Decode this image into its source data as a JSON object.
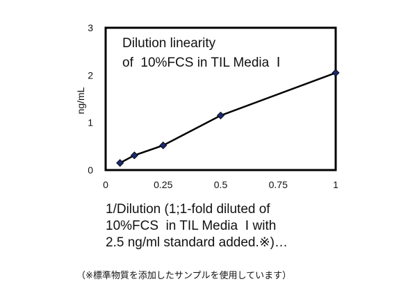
{
  "chart_data": {
    "type": "line",
    "title_lines": [
      "Dilution linearity",
      "of  10%FCS in TIL Media  Ⅰ"
    ],
    "ylabel": "ng/mL",
    "xlim": [
      0,
      1
    ],
    "ylim": [
      0,
      3
    ],
    "x_ticks": [
      "0",
      "0.25",
      "0.5",
      "0.75",
      "1"
    ],
    "y_ticks": [
      "0",
      "1",
      "2",
      "3"
    ],
    "grid": false,
    "series": [
      {
        "x": [
          0.0625,
          0.125,
          0.25,
          0.5,
          1.0
        ],
        "values": [
          0.15,
          0.31,
          0.52,
          1.15,
          2.05
        ],
        "color": "#1a2a6c"
      }
    ]
  },
  "caption_lines": [
    "1/Dilution (1;1-fold diluted of",
    "10%FCS  in TIL Media  Ⅰ with",
    "2.5 ng/ml standard added.※)…"
  ],
  "footnote": "（※標準物質を添加したサンプルを使用しています）"
}
